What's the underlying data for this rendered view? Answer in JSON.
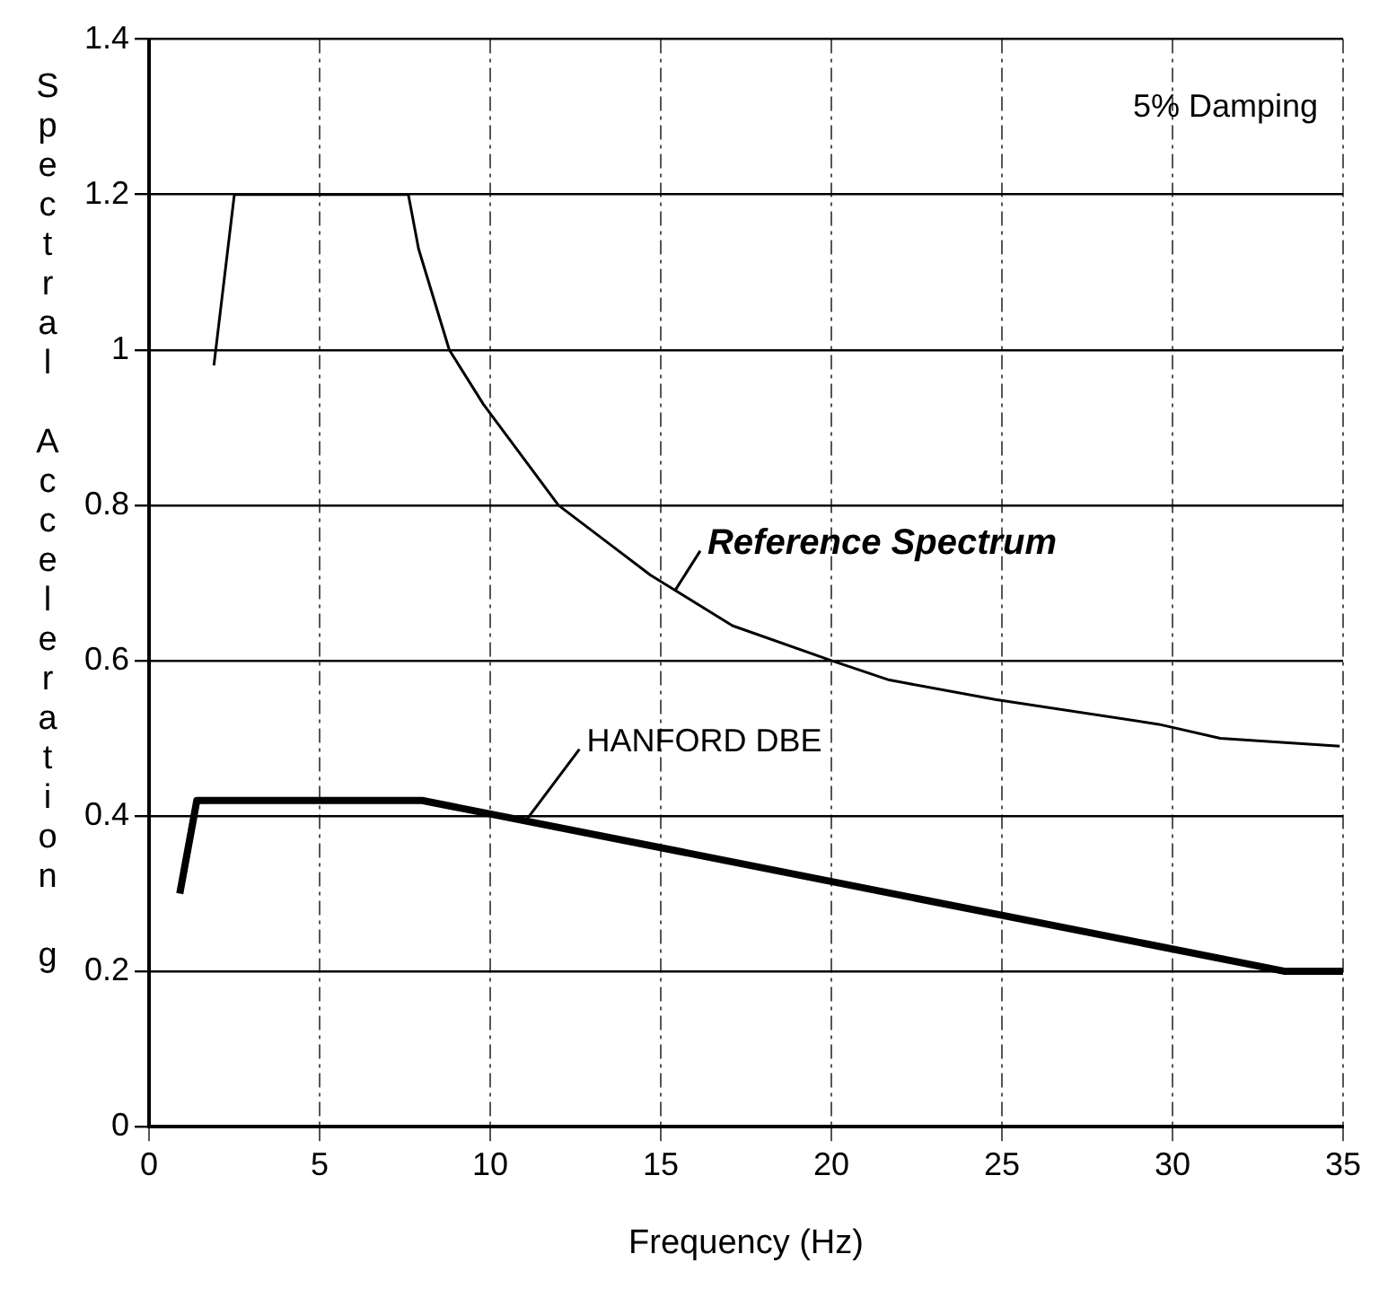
{
  "chart_data": {
    "type": "line",
    "xlabel": "Frequency (Hz)",
    "ylabel": "Spectral Acceleration g",
    "annotations": [
      "5% Damping"
    ],
    "series": [
      {
        "name": "Reference Spectrum",
        "color": "#000000",
        "x": [
          1.9,
          2.5,
          7.6,
          7.9,
          8.8,
          9.8,
          12.0,
          13.5,
          14.7,
          17.1,
          20.0,
          21.7,
          24.8,
          29.6,
          31.4,
          34.9
        ],
        "values": [
          0.98,
          1.2,
          1.2,
          1.13,
          1.0,
          0.93,
          0.8,
          0.75,
          0.71,
          0.645,
          0.6,
          0.575,
          0.55,
          0.518,
          0.5,
          0.49
        ]
      },
      {
        "name": "HANFORD DBE",
        "color": "#000000",
        "x": [
          0.9,
          1.4,
          8,
          33.3,
          35
        ],
        "values": [
          0.3,
          0.42,
          0.42,
          0.2,
          0.2
        ]
      }
    ],
    "xlim": [
      0,
      35
    ],
    "xticks": [
      0,
      5,
      10,
      15,
      20,
      25,
      30,
      35
    ],
    "ylim": [
      0,
      1.4
    ],
    "yticks": [
      0,
      0.2,
      0.4,
      0.6,
      0.8,
      1,
      1.2,
      1.4
    ],
    "grid": true,
    "legend": false,
    "marker": "none",
    "line_style": "solid"
  }
}
